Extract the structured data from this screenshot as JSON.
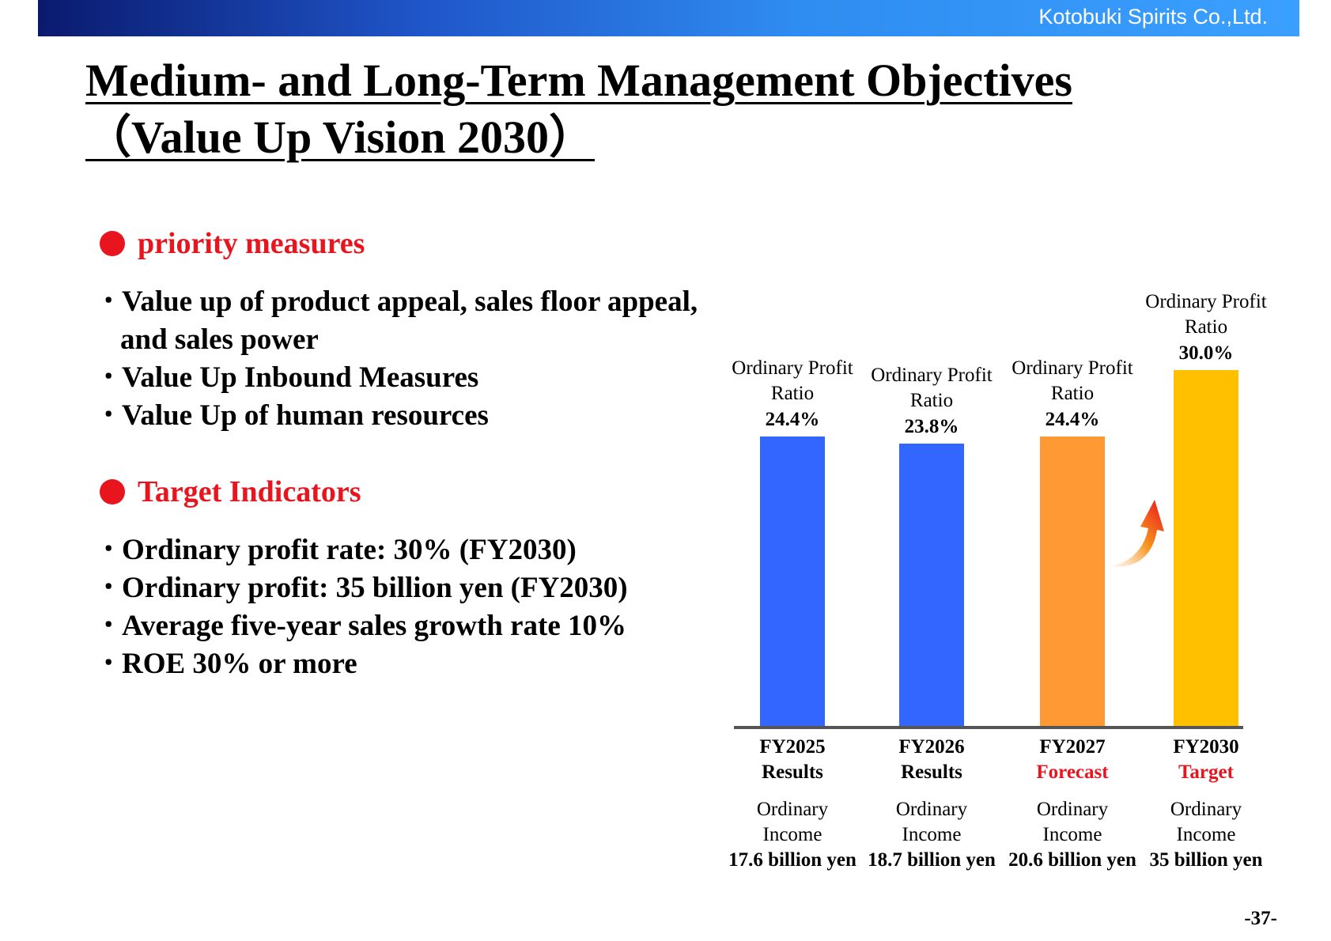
{
  "header": {
    "company": "Kotobuki Spirits Co.,Ltd."
  },
  "title": {
    "line1": "Medium- and Long-Term Management Objectives",
    "line2": "（Value Up Vision 2030）"
  },
  "priority": {
    "heading": "priority measures",
    "items": [
      "Value up of product appeal, sales floor appeal,",
      "and sales power",
      "Value Up Inbound Measures",
      "Value Up of human resources"
    ]
  },
  "targets": {
    "heading": "Target Indicators",
    "items": [
      "Ordinary profit rate: 30% (FY2030)",
      "Ordinary profit: 35 billion yen (FY2030)",
      "Average five-year sales growth rate 10%",
      "ROE 30% or more"
    ]
  },
  "bullet_mark": "･",
  "colors": {
    "accent": "#e8141e",
    "results": "#3366ff",
    "forecast": "#ff9933",
    "target": "#ffc000",
    "arrow": "#f05a28"
  },
  "chart_data": {
    "type": "bar",
    "categories": [
      "FY2025",
      "FY2026",
      "FY2027",
      "FY2030"
    ],
    "category_status": [
      "Results",
      "Results",
      "Forecast",
      "Target"
    ],
    "values": [
      24.4,
      23.8,
      24.4,
      30.0
    ],
    "value_labels": [
      "24.4%",
      "23.8%",
      "24.4%",
      "30.0%"
    ],
    "bar_label_line1": "Ordinary Profit",
    "bar_label_line2": "Ratio",
    "income_line1": "Ordinary",
    "income_line2": "Income",
    "income": [
      "17.6 billion yen",
      "18.7 billion yen",
      "20.6 billion yen",
      "35 billion yen"
    ],
    "bar_colors": [
      "#3366ff",
      "#3366ff",
      "#ff9933",
      "#ffc000"
    ],
    "status_colors": [
      "#000000",
      "#000000",
      "#e8141e",
      "#e8141e"
    ]
  },
  "page": {
    "number": "-37-"
  }
}
